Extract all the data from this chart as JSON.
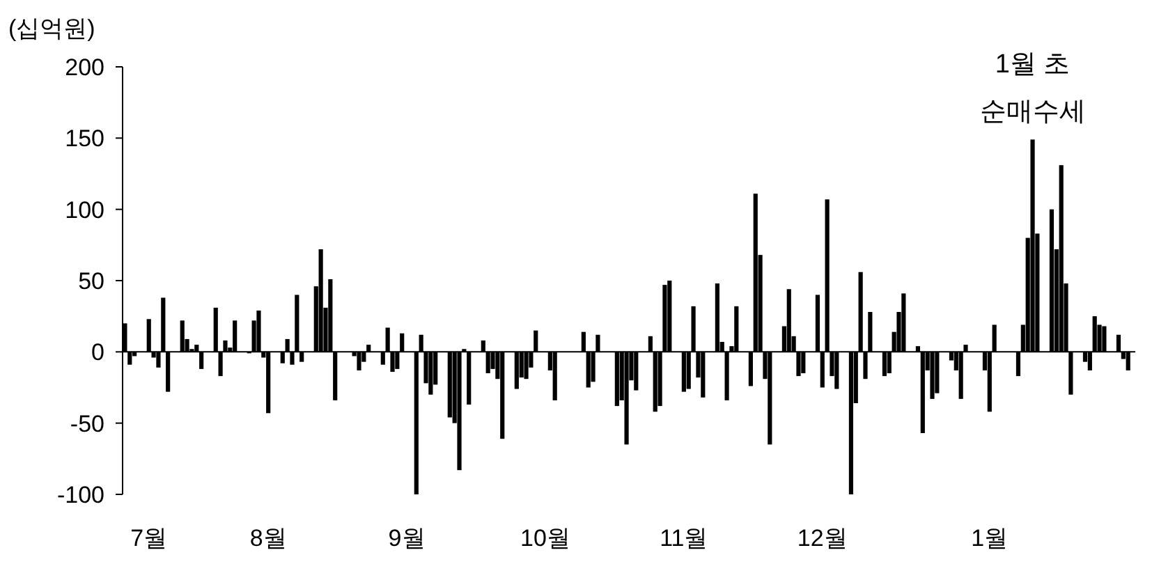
{
  "chart_data": {
    "type": "bar",
    "ylabel": "(십억원)",
    "ylim": [
      -100,
      200
    ],
    "yticks": [
      -100,
      -50,
      0,
      50,
      100,
      150,
      200
    ],
    "annotations": [
      "1월 초\n순매수세"
    ],
    "series": [
      {
        "color": "#000000",
        "values": [
          20,
          -9,
          -3,
          null,
          null,
          23,
          -4,
          -11,
          38,
          -28,
          null,
          null,
          22,
          9,
          2,
          5,
          -12,
          null,
          null,
          31,
          -17,
          8,
          3,
          22,
          null,
          null,
          -1,
          22,
          29,
          -4,
          -43,
          null,
          null,
          -8,
          9,
          -9,
          40,
          -7,
          null,
          null,
          46,
          72,
          31,
          51,
          -34,
          null,
          null,
          null,
          -3,
          -13,
          -7,
          5,
          null,
          null,
          -9,
          17,
          -14,
          -12,
          13,
          null,
          null,
          -100,
          12,
          -22,
          -30,
          -23,
          null,
          null,
          -46,
          -50,
          -83,
          2,
          -37,
          null,
          null,
          8,
          -15,
          -12,
          -19,
          -61,
          null,
          null,
          -26,
          -18,
          -19,
          -11,
          15,
          null,
          null,
          -13,
          -34,
          null,
          null,
          null,
          null,
          null,
          14,
          -25,
          -21,
          12,
          null,
          null,
          null,
          -38,
          -34,
          -65,
          -20,
          -27,
          null,
          null,
          11,
          -42,
          -38,
          47,
          50,
          null,
          null,
          -28,
          -26,
          32,
          -18,
          -32,
          null,
          null,
          48,
          7,
          -34,
          4,
          32,
          null,
          null,
          -24,
          111,
          68,
          -19,
          -65,
          null,
          null,
          18,
          44,
          11,
          -17,
          -15,
          null,
          null,
          40,
          -25,
          107,
          -17,
          -26,
          null,
          null,
          -100,
          -36,
          56,
          -19,
          28,
          null,
          null,
          -17,
          -15,
          14,
          28,
          41,
          null,
          null,
          4,
          -57,
          -13,
          -33,
          -29,
          null,
          null,
          -6,
          -13,
          -33,
          5,
          null,
          null,
          null,
          -13,
          -42,
          19,
          null,
          null,
          null,
          null,
          -17,
          19,
          80,
          149,
          83,
          null,
          null,
          100,
          72,
          131,
          48,
          -30,
          null,
          null,
          -7,
          -13,
          25,
          19,
          18,
          null,
          null,
          12,
          -5,
          -13,
          null
        ]
      }
    ],
    "categories": [
      null,
      null,
      null,
      null,
      null,
      "7월",
      null,
      null,
      null,
      null,
      null,
      null,
      null,
      null,
      null,
      null,
      null,
      null,
      null,
      null,
      null,
      null,
      null,
      null,
      null,
      null,
      null,
      null,
      null,
      null,
      "8월",
      null,
      null,
      null,
      null,
      null,
      null,
      null,
      null,
      null,
      null,
      null,
      null,
      null,
      null,
      null,
      null,
      null,
      null,
      null,
      null,
      null,
      null,
      null,
      null,
      null,
      null,
      null,
      null,
      "9월",
      null,
      null,
      null,
      null,
      null,
      null,
      null,
      null,
      null,
      null,
      null,
      null,
      null,
      null,
      null,
      null,
      null,
      null,
      null,
      null,
      null,
      null,
      null,
      null,
      null,
      null,
      null,
      null,
      "10월",
      null,
      null,
      null,
      null,
      null,
      null,
      null,
      null,
      null,
      null,
      null,
      null,
      null,
      null,
      null,
      null,
      null,
      null,
      null,
      null,
      null,
      null,
      null,
      null,
      null,
      null,
      null,
      null,
      "11월",
      null,
      null,
      null,
      null,
      null,
      null,
      null,
      null,
      null,
      null,
      null,
      null,
      null,
      null,
      null,
      null,
      null,
      null,
      null,
      null,
      null,
      null,
      null,
      null,
      null,
      null,
      null,
      null,
      "12월",
      null,
      null,
      null,
      null,
      null,
      null,
      null,
      null,
      null,
      null,
      null,
      null,
      null,
      null,
      null,
      null,
      null,
      null,
      null,
      null,
      null,
      null,
      null,
      null,
      null,
      null,
      null,
      null,
      null,
      null,
      null,
      null,
      null,
      null,
      "1월",
      null,
      null,
      null,
      null,
      null,
      null,
      null,
      null,
      null,
      null,
      null,
      null,
      null,
      null,
      null,
      null,
      null,
      null,
      null,
      null,
      null,
      null,
      null,
      null,
      null,
      null,
      null,
      null,
      null,
      null
    ]
  }
}
